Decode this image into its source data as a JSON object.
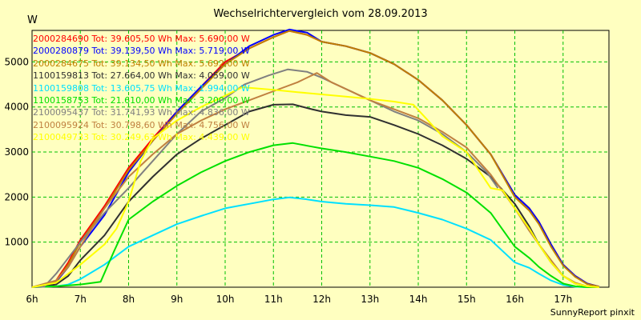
{
  "chart_data": {
    "type": "line",
    "title": "Wechselrichtervergleich vom 28.09.2013",
    "ylabel": "W",
    "footer": "SunnyReport pinxit",
    "xlim": [
      6.0,
      17.95
    ],
    "ylim": [
      0,
      5700
    ],
    "x_ticks": [
      "6h",
      "7h",
      "8h",
      "9h",
      "10h",
      "11h",
      "12h",
      "13h",
      "14h",
      "15h",
      "16h",
      "17h"
    ],
    "y_ticks": [
      "1000",
      "2000",
      "3000",
      "4000",
      "5000"
    ],
    "grid": true,
    "legend_position": "top-left",
    "series": [
      {
        "name": "2000284690 Tot: 39.605,50 Wh Max: 5.690,00 W",
        "color": "#ff0000",
        "x": [
          6.0,
          6.3,
          6.5,
          6.75,
          7.0,
          7.5,
          8.0,
          8.5,
          9.0,
          9.5,
          10.0,
          10.5,
          11.0,
          11.33,
          11.7,
          12.0,
          12.5,
          13.0,
          13.5,
          14.0,
          14.5,
          15.0,
          15.5,
          16.0,
          16.3,
          16.5,
          16.75,
          17.0,
          17.25,
          17.5,
          17.75
        ],
        "y": [
          0,
          20,
          150,
          550,
          1050,
          1800,
          2650,
          3300,
          3900,
          4450,
          5000,
          5300,
          5550,
          5690,
          5600,
          5450,
          5350,
          5200,
          4950,
          4600,
          4150,
          3600,
          2950,
          2050,
          1750,
          1450,
          950,
          500,
          250,
          80,
          10
        ]
      },
      {
        "name": "2000280879 Tot: 39.139,50 Wh Max: 5.719,00 W",
        "color": "#0000ff",
        "x": [
          6.0,
          6.5,
          6.75,
          7.0,
          7.5,
          8.0,
          8.5,
          9.0,
          9.5,
          10.0,
          10.5,
          11.0,
          11.33,
          11.7,
          12.0,
          12.5,
          13.0,
          13.5,
          14.0,
          14.5,
          15.0,
          15.5,
          16.0,
          16.3,
          16.5,
          16.75,
          17.0,
          17.25,
          17.5,
          17.75
        ],
        "y": [
          0,
          120,
          450,
          900,
          1600,
          2550,
          3250,
          3900,
          4450,
          4950,
          5350,
          5600,
          5719,
          5650,
          5450,
          5350,
          5200,
          4950,
          4600,
          4150,
          3600,
          2950,
          2050,
          1750,
          1450,
          950,
          500,
          250,
          80,
          10
        ]
      },
      {
        "name": "2000284675 Tot: 39.134,50 Wh Max: 5.692,00 W",
        "color": "#c08000",
        "x": [
          6.0,
          6.5,
          6.75,
          7.0,
          7.5,
          8.0,
          8.5,
          9.0,
          9.5,
          10.0,
          10.5,
          11.0,
          11.33,
          11.7,
          12.0,
          12.5,
          13.0,
          13.5,
          14.0,
          14.5,
          15.0,
          15.5,
          16.0,
          16.3,
          16.5,
          16.75,
          17.0,
          17.25,
          17.5,
          17.75
        ],
        "y": [
          0,
          130,
          500,
          1000,
          1750,
          2600,
          3250,
          3850,
          4400,
          4950,
          5300,
          5550,
          5692,
          5600,
          5450,
          5350,
          5200,
          4950,
          4600,
          4150,
          3600,
          2950,
          2000,
          1700,
          1400,
          900,
          480,
          230,
          70,
          10
        ]
      },
      {
        "name": "1100159813 Tot: 27.664,00 Wh Max: 4.059,00 W",
        "color": "#303030",
        "x": [
          6.0,
          6.5,
          6.75,
          7.0,
          7.5,
          8.0,
          8.5,
          9.0,
          9.5,
          10.0,
          10.5,
          11.0,
          11.4,
          11.8,
          12.0,
          12.5,
          13.0,
          13.5,
          14.0,
          14.5,
          15.0,
          15.5,
          16.0,
          16.3,
          16.5,
          16.75,
          17.0,
          17.25,
          17.5,
          17.75
        ],
        "y": [
          0,
          60,
          250,
          600,
          1150,
          1900,
          2450,
          2950,
          3300,
          3600,
          3900,
          4050,
          4059,
          3950,
          3900,
          3820,
          3780,
          3600,
          3400,
          3150,
          2850,
          2450,
          1850,
          1350,
          950,
          550,
          250,
          80,
          20,
          0
        ]
      },
      {
        "name": "1100159808 Tot: 13.605,75 Wh Max: 1.994,00 W",
        "color": "#00e0ff",
        "x": [
          6.0,
          6.5,
          6.75,
          7.0,
          7.5,
          8.0,
          8.5,
          9.0,
          9.5,
          10.0,
          10.5,
          11.0,
          11.33,
          11.7,
          12.0,
          12.5,
          13.0,
          13.5,
          14.0,
          14.5,
          15.0,
          15.5,
          16.0,
          16.3,
          16.5,
          16.75,
          17.0,
          17.25,
          17.5,
          17.75
        ],
        "y": [
          0,
          20,
          60,
          180,
          500,
          900,
          1150,
          1400,
          1580,
          1750,
          1850,
          1950,
          1994,
          1950,
          1900,
          1850,
          1820,
          1780,
          1650,
          1500,
          1300,
          1050,
          550,
          430,
          300,
          150,
          50,
          10,
          0,
          0
        ]
      },
      {
        "name": "1100158753 Tot: 21.610,00 Wh Max: 3.200,00 W",
        "color": "#00e000",
        "x": [
          6.0,
          6.5,
          7.0,
          7.42,
          7.7,
          8.0,
          8.5,
          9.0,
          9.5,
          10.0,
          10.5,
          11.0,
          11.4,
          11.8,
          12.0,
          12.5,
          13.0,
          13.5,
          14.0,
          14.5,
          15.0,
          15.5,
          16.0,
          16.3,
          16.5,
          16.75,
          17.0,
          17.25,
          17.5,
          17.75
        ],
        "y": [
          0,
          20,
          60,
          120,
          800,
          1500,
          1900,
          2250,
          2550,
          2800,
          3000,
          3150,
          3200,
          3120,
          3080,
          3000,
          2900,
          2800,
          2650,
          2400,
          2100,
          1650,
          900,
          650,
          450,
          250,
          80,
          20,
          0,
          0
        ]
      },
      {
        "name": "2100095437 Tot: 31.741,93 Wh Max: 4.836,00 W",
        "color": "#808080",
        "x": [
          6.0,
          6.25,
          6.5,
          7.0,
          7.5,
          8.0,
          8.5,
          9.0,
          9.5,
          10.0,
          10.4,
          10.9,
          11.3,
          11.7,
          12.0,
          12.5,
          13.0,
          13.5,
          14.0,
          14.5,
          15.0,
          15.42,
          15.65
        ],
        "y": [
          0,
          10,
          300,
          1000,
          1650,
          2200,
          2800,
          3400,
          3900,
          4200,
          4500,
          4700,
          4836,
          4780,
          4650,
          4400,
          4150,
          3900,
          3700,
          3400,
          3000,
          2550,
          2200
        ]
      },
      {
        "name": "2100095924 Tot: 30.798,60 Wh Max: 4.756,00 W",
        "color": "#c08040",
        "x": [
          6.0,
          6.5,
          6.75,
          7.0,
          7.5,
          8.0,
          8.5,
          9.0,
          9.5,
          10.0,
          10.5,
          11.0,
          11.5,
          11.9,
          12.2,
          12.6,
          13.0,
          13.5,
          14.0,
          14.5,
          15.0,
          15.5,
          16.0,
          16.3,
          16.5,
          16.75,
          17.0,
          17.25,
          17.5,
          17.75
        ],
        "y": [
          0,
          150,
          450,
          900,
          1750,
          2450,
          2950,
          3400,
          3700,
          3950,
          4150,
          4350,
          4550,
          4756,
          4550,
          4350,
          4150,
          3950,
          3750,
          3450,
          3100,
          2500,
          1750,
          1250,
          950,
          600,
          250,
          100,
          20,
          0
        ]
      },
      {
        "name": "2100049733 Tot: 30.249,63 Wh Max: 4.439,00 W",
        "color": "#ffff00",
        "x": [
          6.0,
          6.5,
          7.0,
          7.5,
          7.75,
          8.0,
          8.25,
          8.5,
          9.0,
          9.5,
          10.0,
          10.35,
          11.0,
          11.5,
          12.0,
          12.5,
          13.0,
          13.5,
          13.9,
          14.2,
          14.5,
          15.0,
          15.25,
          15.5,
          15.75,
          16.0,
          16.3,
          16.5,
          16.75,
          17.0,
          17.25,
          17.5,
          17.75
        ],
        "y": [
          0,
          100,
          500,
          950,
          1300,
          1900,
          2800,
          3300,
          3700,
          4000,
          4250,
          4439,
          4380,
          4330,
          4280,
          4230,
          4180,
          4120,
          4050,
          3700,
          3350,
          3000,
          2600,
          2200,
          2150,
          1750,
          1300,
          950,
          550,
          250,
          80,
          20,
          0
        ]
      }
    ]
  }
}
